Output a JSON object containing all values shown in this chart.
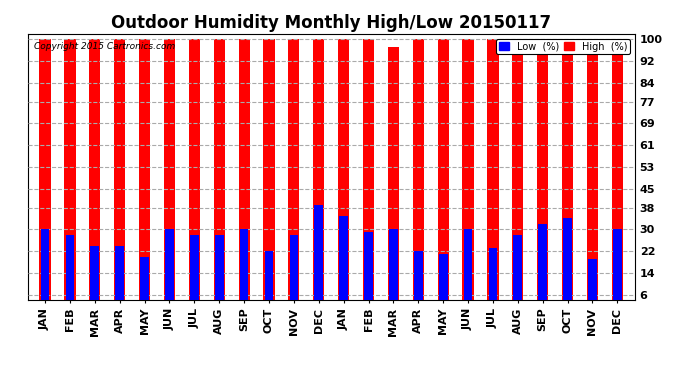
{
  "title": "Outdoor Humidity Monthly High/Low 20150117",
  "copyright": "Copyright 2015 Cartronics.com",
  "months": [
    "JAN",
    "FEB",
    "MAR",
    "APR",
    "MAY",
    "JUN",
    "JUL",
    "AUG",
    "SEP",
    "OCT",
    "NOV",
    "DEC",
    "JAN",
    "FEB",
    "MAR",
    "APR",
    "MAY",
    "JUN",
    "JUL",
    "AUG",
    "SEP",
    "OCT",
    "NOV",
    "DEC"
  ],
  "high_values": [
    100,
    100,
    100,
    100,
    100,
    100,
    100,
    100,
    100,
    100,
    100,
    100,
    100,
    100,
    97,
    100,
    100,
    100,
    100,
    100,
    100,
    100,
    100,
    100
  ],
  "low_values": [
    30,
    28,
    24,
    24,
    20,
    30,
    28,
    28,
    30,
    22,
    28,
    39,
    35,
    29,
    30,
    22,
    21,
    30,
    23,
    28,
    32,
    34,
    19,
    30
  ],
  "bar_color_high": "#ff0000",
  "bar_color_low": "#0000ff",
  "bg_color": "#ffffff",
  "yticks": [
    6,
    14,
    22,
    30,
    38,
    45,
    53,
    61,
    69,
    77,
    84,
    92,
    100
  ],
  "ylim": [
    4,
    102
  ],
  "grid_color": "#aaaaaa",
  "title_fontsize": 12,
  "tick_fontsize": 8,
  "legend_low_label": "Low  (%)",
  "legend_high_label": "High  (%)"
}
